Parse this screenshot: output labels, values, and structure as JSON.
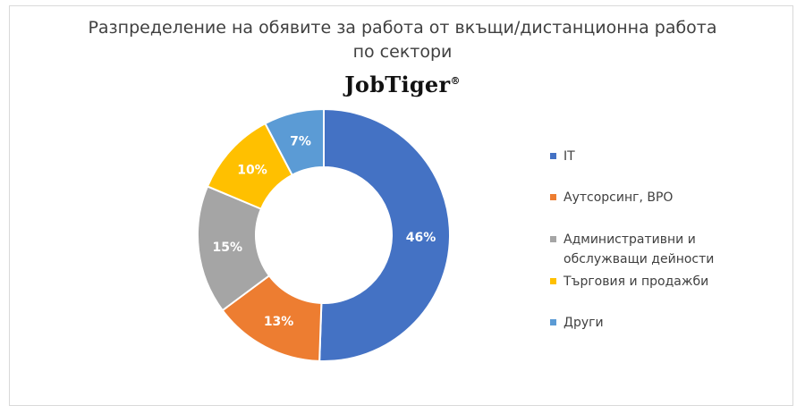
{
  "title": {
    "line1": "Разпределение на обявите за работа от вкъщи/дистанционна работа",
    "line2": "по сектори"
  },
  "logo": {
    "text": "JobTiger",
    "mark": "®"
  },
  "chart_data": {
    "type": "pie",
    "variant": "donut",
    "title": "Разпределение на обявите за работа от вкъщи/дистанционна работа по сектори",
    "legend_position": "right",
    "series": [
      {
        "name": "IT",
        "value": 46,
        "label": "46%",
        "color": "#4472C4"
      },
      {
        "name": "Аутсорсинг, BPO",
        "value": 13,
        "label": "13%",
        "color": "#ED7D31"
      },
      {
        "name": "Административни и обслужващи дейности",
        "value": 15,
        "label": "15%",
        "color": "#A5A5A5"
      },
      {
        "name": "Търговия и продажби",
        "value": 10,
        "label": "10%",
        "color": "#FFC000"
      },
      {
        "name": "Други",
        "value": 7,
        "label": "7%",
        "color": "#5B9BD5"
      }
    ]
  }
}
